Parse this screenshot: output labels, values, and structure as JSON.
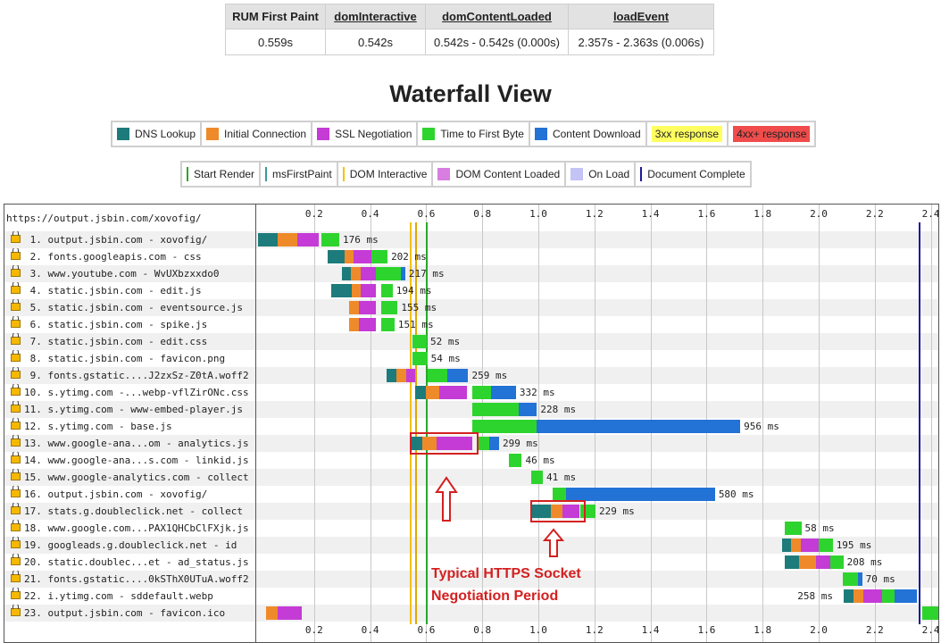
{
  "metrics": {
    "headers": [
      "RUM First Paint",
      "domInteractive",
      "domContentLoaded",
      "loadEvent"
    ],
    "values": [
      "0.559s",
      "0.542s",
      "0.542s - 0.542s (0.000s)",
      "2.357s - 2.363s (0.006s)"
    ]
  },
  "title": "Waterfall View",
  "legend_top": [
    {
      "label": "DNS Lookup",
      "color": "#1e7b7b"
    },
    {
      "label": "Initial Connection",
      "color": "#ef8a2a"
    },
    {
      "label": "SSL Negotiation",
      "color": "#c43bd6"
    },
    {
      "label": "Time to First Byte",
      "color": "#2ed42e"
    },
    {
      "label": "Content Download",
      "color": "#2372d6"
    },
    {
      "label": "3xx response",
      "color": "#ffff60"
    },
    {
      "label": "4xx+ response",
      "color": "#f04c4c"
    }
  ],
  "legend_bottom": [
    {
      "label": "Start Render",
      "color": "#28a828",
      "kind": "line"
    },
    {
      "label": "msFirstPaint",
      "color": "#3c9a9a",
      "kind": "line"
    },
    {
      "label": "DOM Interactive",
      "color": "#f2c200",
      "kind": "line"
    },
    {
      "label": "DOM Content Loaded",
      "color": "#d77ee0",
      "kind": "box"
    },
    {
      "label": "On Load",
      "color": "#c3c3f5",
      "kind": "box"
    },
    {
      "label": "Document Complete",
      "color": "#1a1a9a",
      "kind": "line"
    }
  ],
  "waterfall": {
    "page_url": "https://output.jsbin.com/xovofig/",
    "ticks": [
      "0.2",
      "0.4",
      "0.6",
      "0.8",
      "1.0",
      "1.2",
      "1.4",
      "1.6",
      "1.8",
      "2.0",
      "2.2",
      "2.4"
    ],
    "markers": {
      "dom_interactive": 0.542,
      "first_paint": 0.559,
      "start_render": 0.6,
      "document_complete": 2.357
    },
    "rows": [
      {
        "label": " 1. output.jsbin.com - xovofig/",
        "duration": "176 ms",
        "segments": [
          [
            "dns",
            0.0,
            0.07
          ],
          [
            "conn",
            0.07,
            0.14
          ],
          [
            "ssl",
            0.14,
            0.215
          ],
          [
            "ttfb",
            0.226,
            0.29
          ]
        ]
      },
      {
        "label": " 2. fonts.googleapis.com - css",
        "duration": "202 ms",
        "segments": [
          [
            "dns",
            0.248,
            0.31
          ],
          [
            "conn",
            0.31,
            0.34
          ],
          [
            "ssl",
            0.34,
            0.405
          ],
          [
            "ttfb",
            0.405,
            0.462
          ]
        ]
      },
      {
        "label": " 3. www.youtube.com - WvUXbzxxdo0",
        "duration": "217 ms",
        "segments": [
          [
            "dns",
            0.298,
            0.33
          ],
          [
            "conn",
            0.33,
            0.365
          ],
          [
            "ssl",
            0.365,
            0.42
          ],
          [
            "ttfb",
            0.42,
            0.51
          ],
          [
            "dl",
            0.51,
            0.525
          ]
        ]
      },
      {
        "label": " 4. static.jsbin.com - edit.js",
        "duration": "194 ms",
        "segments": [
          [
            "dns",
            0.26,
            0.335
          ],
          [
            "conn",
            0.335,
            0.365
          ],
          [
            "ssl",
            0.365,
            0.42
          ],
          [
            "ttfb",
            0.438,
            0.48
          ]
        ]
      },
      {
        "label": " 5. static.jsbin.com - eventsource.js",
        "duration": "155 ms",
        "segments": [
          [
            "conn",
            0.325,
            0.36
          ],
          [
            "ssl",
            0.36,
            0.42
          ],
          [
            "ttfb",
            0.438,
            0.498
          ]
        ]
      },
      {
        "label": " 6. static.jsbin.com - spike.js",
        "duration": "151 ms",
        "segments": [
          [
            "conn",
            0.325,
            0.36
          ],
          [
            "ssl",
            0.36,
            0.42
          ],
          [
            "ttfb",
            0.438,
            0.487
          ]
        ]
      },
      {
        "label": " 7. static.jsbin.com - edit.css",
        "duration": "52 ms",
        "segments": [
          [
            "ttfb",
            0.55,
            0.602
          ]
        ]
      },
      {
        "label": " 8. static.jsbin.com - favicon.png",
        "duration": "54 ms",
        "segments": [
          [
            "ttfb",
            0.55,
            0.604
          ]
        ]
      },
      {
        "label": " 9. fonts.gstatic....J2zxSz-Z0tA.woff2",
        "duration": "259 ms",
        "segments": [
          [
            "dns",
            0.46,
            0.495
          ],
          [
            "conn",
            0.495,
            0.53
          ],
          [
            "ssl",
            0.53,
            0.56
          ],
          [
            "ttfb",
            0.605,
            0.675
          ],
          [
            "dl",
            0.675,
            0.75
          ]
        ]
      },
      {
        "label": "10. s.ytimg.com -...webp-vflZirONc.css",
        "duration": "332 ms",
        "segments": [
          [
            "dns",
            0.56,
            0.6
          ],
          [
            "conn",
            0.6,
            0.645
          ],
          [
            "ssl",
            0.645,
            0.745
          ],
          [
            "ttfb",
            0.765,
            0.83
          ],
          [
            "dl",
            0.83,
            0.92
          ]
        ]
      },
      {
        "label": "11. s.ytimg.com - www-embed-player.js",
        "duration": "228 ms",
        "segments": [
          [
            "ttfb",
            0.765,
            0.93
          ],
          [
            "dl",
            0.93,
            0.995
          ]
        ]
      },
      {
        "label": "12. s.ytimg.com - base.js",
        "duration": "956 ms",
        "segments": [
          [
            "ttfb",
            0.765,
            0.995
          ],
          [
            "dl",
            0.995,
            1.72
          ]
        ]
      },
      {
        "label": "13. www.google-ana...om - analytics.js",
        "duration": "299 ms",
        "segments": [
          [
            "dns",
            0.547,
            0.585
          ],
          [
            "conn",
            0.585,
            0.638
          ],
          [
            "ssl",
            0.638,
            0.765
          ],
          [
            "ttfb",
            0.785,
            0.825
          ],
          [
            "dl",
            0.825,
            0.86
          ]
        ]
      },
      {
        "label": "14. www.google-ana...s.com - linkid.js",
        "duration": "46 ms",
        "segments": [
          [
            "ttfb",
            0.895,
            0.941
          ]
        ]
      },
      {
        "label": "15. www.google-analytics.com - collect",
        "duration": "41 ms",
        "segments": [
          [
            "ttfb",
            0.975,
            1.016
          ]
        ]
      },
      {
        "label": "16. output.jsbin.com - xovofig/",
        "duration": "580 ms",
        "segments": [
          [
            "ttfb",
            1.05,
            1.1
          ],
          [
            "dl",
            1.1,
            1.63
          ]
        ]
      },
      {
        "label": "17. stats.g.doubleclick.net - collect",
        "duration": "229 ms",
        "segments": [
          [
            "dns",
            0.975,
            1.045
          ],
          [
            "conn",
            1.045,
            1.085
          ],
          [
            "ssl",
            1.085,
            1.145
          ],
          [
            "ttfb",
            1.15,
            1.204
          ]
        ]
      },
      {
        "label": "18. www.google.com...PAX1QHCbClFXjk.js",
        "duration": "58 ms",
        "segments": [
          [
            "ttfb",
            1.88,
            1.938
          ]
        ]
      },
      {
        "label": "19. googleads.g.doubleclick.net - id",
        "duration": "195 ms",
        "segments": [
          [
            "dns",
            1.87,
            1.9
          ],
          [
            "conn",
            1.9,
            1.935
          ],
          [
            "ssl",
            1.935,
            2.0
          ],
          [
            "ttfb",
            2.0,
            2.05
          ]
        ]
      },
      {
        "label": "20. static.doublec...et - ad_status.js",
        "duration": "208 ms",
        "segments": [
          [
            "dns",
            1.88,
            1.93
          ],
          [
            "conn",
            1.93,
            1.99
          ],
          [
            "ssl",
            1.99,
            2.04
          ],
          [
            "ttfb",
            2.04,
            2.088
          ]
        ]
      },
      {
        "label": "21. fonts.gstatic....0kSThX0UTuA.woff2",
        "duration": "70 ms",
        "segments": [
          [
            "ttfb",
            2.085,
            2.14
          ],
          [
            "dl",
            2.14,
            2.155
          ]
        ]
      },
      {
        "label": "22. i.ytimg.com - sddefault.webp",
        "duration": "258 ms",
        "segments": [
          [
            "dns",
            2.09,
            2.125
          ],
          [
            "conn",
            2.125,
            2.16
          ],
          [
            "ssl",
            2.16,
            2.225
          ],
          [
            "ttfb",
            2.225,
            2.27
          ],
          [
            "dl",
            2.27,
            2.35
          ]
        ]
      },
      {
        "label": "23. output.jsbin.com - favicon.ico",
        "duration": "",
        "segments": [
          [
            "conn",
            0.03,
            0.07
          ],
          [
            "ssl",
            0.07,
            0.155
          ],
          [
            "ttfb",
            2.37,
            2.45
          ]
        ]
      }
    ]
  },
  "annotation": {
    "line1": "Typical HTTPS Socket",
    "line2": "Negotiation Period"
  }
}
